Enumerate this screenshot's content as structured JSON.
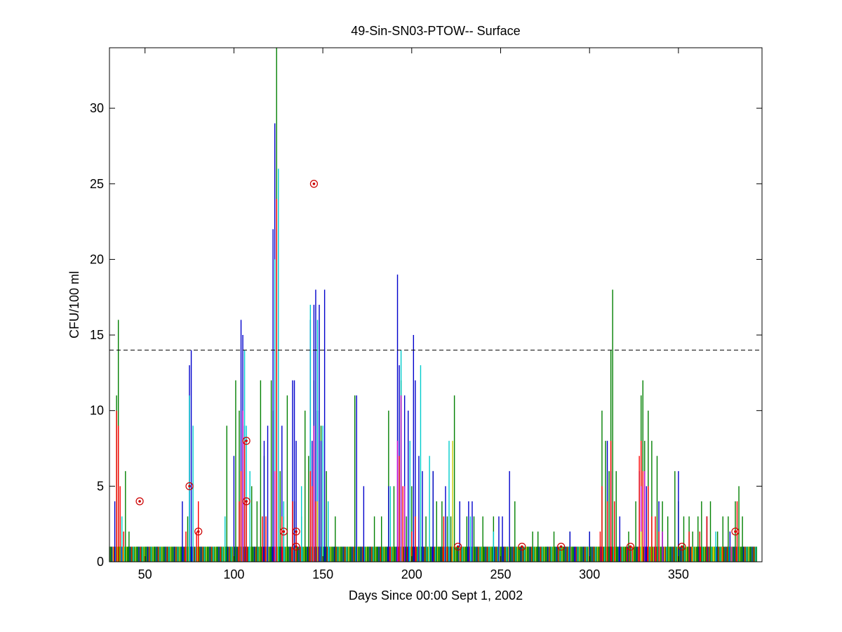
{
  "chart_data": {
    "type": "bar",
    "title": "49-Sin-SN03-PTOW-- Surface",
    "xlabel": "Days Since 00:00 Sept 1, 2002",
    "ylabel": "CFU/100 ml",
    "xlim": [
      30,
      397
    ],
    "ylim": [
      0,
      34
    ],
    "x_ticks": [
      "50",
      "100",
      "150",
      "200",
      "250",
      "300",
      "350"
    ],
    "y_ticks": [
      "0",
      "5",
      "10",
      "15",
      "20",
      "25",
      "30"
    ],
    "grid": false,
    "threshold": {
      "y": 14,
      "style": "dashed",
      "color": "#000000"
    },
    "colors": {
      "green": "#008000",
      "blue": "#0000cc",
      "red": "#ff0000",
      "cyan": "#00cccc",
      "magenta": "#cc00cc",
      "yellow": "#cccc00"
    },
    "series": [
      {
        "color": "#008000",
        "bars": [
          [
            34,
            11
          ],
          [
            35,
            16
          ],
          [
            36,
            3
          ],
          [
            39,
            6
          ],
          [
            41,
            2
          ],
          [
            74,
            3
          ],
          [
            96,
            9
          ],
          [
            101,
            12
          ],
          [
            103,
            10
          ],
          [
            106,
            4
          ],
          [
            110,
            5
          ],
          [
            113,
            4
          ],
          [
            115,
            12
          ],
          [
            117,
            7
          ],
          [
            121,
            12
          ],
          [
            122,
            10
          ],
          [
            124,
            34
          ],
          [
            126,
            6
          ],
          [
            128,
            3
          ],
          [
            130,
            11
          ],
          [
            134,
            4
          ],
          [
            138,
            3
          ],
          [
            140,
            10
          ],
          [
            142,
            7
          ],
          [
            145,
            12
          ],
          [
            149,
            9
          ],
          [
            152,
            6
          ],
          [
            157,
            3
          ],
          [
            168,
            11
          ],
          [
            179,
            3
          ],
          [
            183,
            3
          ],
          [
            187,
            10
          ],
          [
            190,
            5
          ],
          [
            194,
            12
          ],
          [
            197,
            3
          ],
          [
            200,
            5
          ],
          [
            208,
            3
          ],
          [
            212,
            6
          ],
          [
            214,
            4
          ],
          [
            217,
            4
          ],
          [
            220,
            3
          ],
          [
            222,
            3
          ],
          [
            224,
            11
          ],
          [
            231,
            3
          ],
          [
            235,
            3
          ],
          [
            240,
            3
          ],
          [
            246,
            3
          ],
          [
            258,
            4
          ],
          [
            268,
            2
          ],
          [
            271,
            2
          ],
          [
            280,
            2
          ],
          [
            289,
            2
          ],
          [
            300,
            2
          ],
          [
            307,
            10
          ],
          [
            309,
            8
          ],
          [
            311,
            6
          ],
          [
            312,
            14
          ],
          [
            313,
            18
          ],
          [
            315,
            6
          ],
          [
            320,
            1
          ],
          [
            322,
            2
          ],
          [
            326,
            4
          ],
          [
            329,
            11
          ],
          [
            330,
            12
          ],
          [
            331,
            8
          ],
          [
            333,
            10
          ],
          [
            335,
            8
          ],
          [
            338,
            7
          ],
          [
            341,
            4
          ],
          [
            344,
            3
          ],
          [
            348,
            6
          ],
          [
            350,
            4
          ],
          [
            353,
            3
          ],
          [
            356,
            3
          ],
          [
            358,
            2
          ],
          [
            361,
            3
          ],
          [
            363,
            4
          ],
          [
            366,
            3
          ],
          [
            368,
            4
          ],
          [
            372,
            2
          ],
          [
            375,
            3
          ],
          [
            378,
            3
          ],
          [
            382,
            4
          ],
          [
            384,
            5
          ],
          [
            386,
            3
          ]
        ]
      },
      {
        "color": "#0000cc",
        "bars": [
          [
            33,
            4
          ],
          [
            71,
            4
          ],
          [
            75,
            13
          ],
          [
            76,
            14
          ],
          [
            100,
            7
          ],
          [
            104,
            16
          ],
          [
            105,
            15
          ],
          [
            106,
            9
          ],
          [
            117,
            8
          ],
          [
            119,
            9
          ],
          [
            122,
            22
          ],
          [
            123,
            29
          ],
          [
            124,
            6
          ],
          [
            127,
            9
          ],
          [
            133,
            12
          ],
          [
            134,
            12
          ],
          [
            135,
            8
          ],
          [
            143,
            16
          ],
          [
            144,
            8
          ],
          [
            145,
            17
          ],
          [
            146,
            18
          ],
          [
            147,
            10
          ],
          [
            148,
            17
          ],
          [
            149,
            8
          ],
          [
            151,
            18
          ],
          [
            169,
            11
          ],
          [
            173,
            5
          ],
          [
            187,
            5
          ],
          [
            192,
            19
          ],
          [
            193,
            13
          ],
          [
            196,
            11
          ],
          [
            198,
            10
          ],
          [
            201,
            15
          ],
          [
            202,
            12
          ],
          [
            204,
            7
          ],
          [
            206,
            6
          ],
          [
            212,
            6
          ],
          [
            219,
            5
          ],
          [
            227,
            4
          ],
          [
            232,
            4
          ],
          [
            234,
            4
          ],
          [
            249,
            3
          ],
          [
            251,
            3
          ],
          [
            255,
            6
          ],
          [
            289,
            2
          ],
          [
            292,
            1
          ],
          [
            300,
            2
          ],
          [
            310,
            8
          ],
          [
            312,
            6
          ],
          [
            317,
            3
          ],
          [
            328,
            6
          ],
          [
            332,
            5
          ],
          [
            339,
            4
          ],
          [
            350,
            6
          ],
          [
            366,
            3
          ],
          [
            379,
            2
          ]
        ]
      },
      {
        "color": "#00cccc",
        "bars": [
          [
            37,
            3
          ],
          [
            75,
            11
          ],
          [
            77,
            9
          ],
          [
            95,
            3
          ],
          [
            106,
            14
          ],
          [
            107,
            9
          ],
          [
            109,
            6
          ],
          [
            123,
            20
          ],
          [
            125,
            26
          ],
          [
            128,
            4
          ],
          [
            138,
            5
          ],
          [
            143,
            17
          ],
          [
            147,
            16
          ],
          [
            150,
            9
          ],
          [
            153,
            4
          ],
          [
            188,
            5
          ],
          [
            194,
            14
          ],
          [
            199,
            8
          ],
          [
            205,
            13
          ],
          [
            210,
            7
          ],
          [
            221,
            8
          ],
          [
            233,
            3
          ],
          [
            246,
            2
          ],
          [
            330,
            3
          ],
          [
            341,
            2
          ],
          [
            371,
            2
          ]
        ]
      },
      {
        "color": "#ff0000",
        "bars": [
          [
            34,
            10
          ],
          [
            35,
            9
          ],
          [
            36,
            5
          ],
          [
            38,
            2
          ],
          [
            73,
            2
          ],
          [
            79,
            2
          ],
          [
            80,
            4
          ],
          [
            103,
            4
          ],
          [
            104,
            6
          ],
          [
            106,
            8
          ],
          [
            107,
            4
          ],
          [
            116,
            3
          ],
          [
            118,
            3
          ],
          [
            124,
            24
          ],
          [
            127,
            3
          ],
          [
            133,
            4
          ],
          [
            135,
            2
          ],
          [
            143,
            6
          ],
          [
            144,
            5
          ],
          [
            145,
            8
          ],
          [
            146,
            4
          ],
          [
            188,
            1
          ],
          [
            193,
            7
          ],
          [
            195,
            5
          ],
          [
            200,
            2
          ],
          [
            202,
            3
          ],
          [
            218,
            3
          ],
          [
            220,
            1
          ],
          [
            306,
            2
          ],
          [
            307,
            5
          ],
          [
            310,
            4
          ],
          [
            312,
            8
          ],
          [
            314,
            4
          ],
          [
            321,
            1
          ],
          [
            324,
            1
          ],
          [
            328,
            7
          ],
          [
            329,
            8
          ],
          [
            330,
            6
          ],
          [
            331,
            5
          ],
          [
            333,
            5
          ],
          [
            335,
            3
          ],
          [
            337,
            3
          ],
          [
            339,
            2
          ],
          [
            356,
            2
          ],
          [
            362,
            2
          ],
          [
            366,
            3
          ],
          [
            375,
            1
          ],
          [
            383,
            4
          ]
        ]
      },
      {
        "color": "#cc00cc",
        "bars": [
          [
            105,
            10
          ],
          [
            123,
            6
          ],
          [
            145,
            9
          ],
          [
            192,
            8
          ],
          [
            194,
            11
          ],
          [
            196,
            5
          ],
          [
            329,
            5
          ],
          [
            331,
            6
          ],
          [
            341,
            2
          ],
          [
            380,
            1
          ]
        ]
      },
      {
        "color": "#cccc00",
        "bars": [
          [
            32,
            1
          ],
          [
            36,
            1
          ],
          [
            38,
            1
          ],
          [
            147,
            4
          ],
          [
            223,
            8
          ],
          [
            227,
            1
          ],
          [
            329,
            2
          ],
          [
            336,
            1
          ],
          [
            342,
            1
          ],
          [
            358,
            1
          ],
          [
            370,
            1
          ]
        ]
      }
    ],
    "baseline_pattern": {
      "x_range": [
        30,
        394
      ],
      "value": 1,
      "colors": [
        "#008000",
        "#008000",
        "#008000",
        "#0000cc",
        "#008000",
        "#ff0000",
        "#008000",
        "#00cccc",
        "#008000",
        "#cccc00"
      ]
    },
    "markers": {
      "style": "circle-dot",
      "color": "#cc0000",
      "points": [
        [
          47,
          4
        ],
        [
          75,
          5
        ],
        [
          80,
          2
        ],
        [
          107,
          8
        ],
        [
          107,
          4
        ],
        [
          128,
          2
        ],
        [
          135,
          1
        ],
        [
          135,
          2
        ],
        [
          145,
          25
        ],
        [
          226,
          1
        ],
        [
          262,
          1
        ],
        [
          284,
          1
        ],
        [
          323,
          1
        ],
        [
          352,
          1
        ],
        [
          382,
          2
        ]
      ]
    }
  }
}
